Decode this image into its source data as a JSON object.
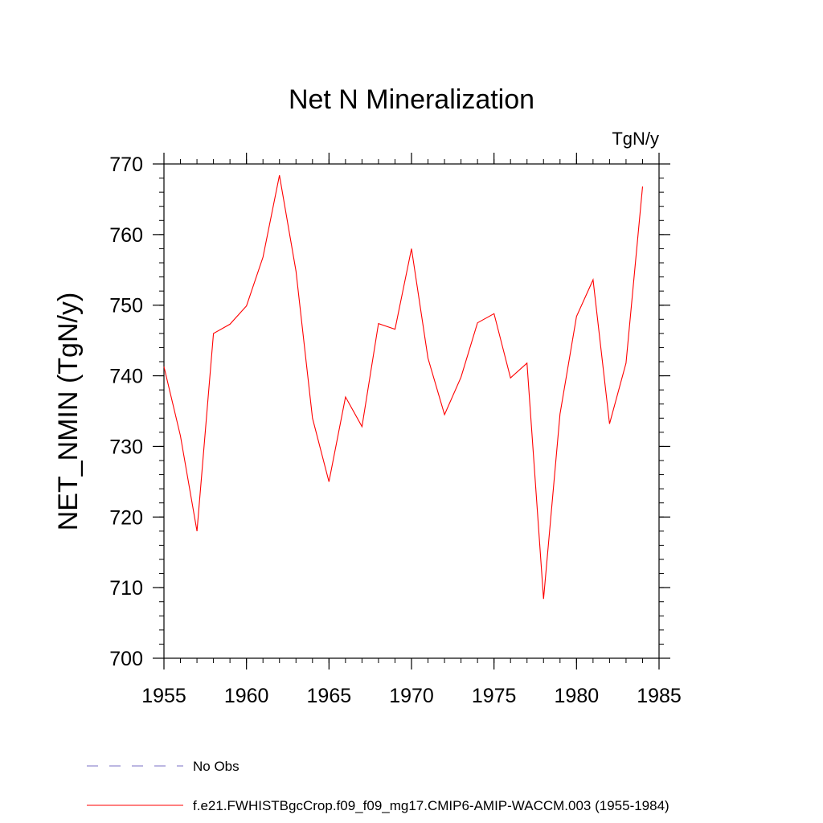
{
  "chart_data": {
    "type": "line",
    "title": "Net N Mineralization",
    "units_label": "TgN/y",
    "ylabel": "NET_NMIN  (TgN/y)",
    "xlabel": "",
    "xlim": [
      1955,
      1985
    ],
    "ylim": [
      700,
      770
    ],
    "x_major_ticks": [
      1955,
      1960,
      1965,
      1970,
      1975,
      1980,
      1985
    ],
    "x_tick_labels": [
      "1955",
      "1960",
      "1965",
      "1970",
      "1975",
      "1980",
      "1985"
    ],
    "x_minor_step": 1,
    "y_major_ticks": [
      700,
      710,
      720,
      730,
      740,
      750,
      760,
      770
    ],
    "y_tick_labels": [
      "700",
      "710",
      "720",
      "730",
      "740",
      "750",
      "760",
      "770"
    ],
    "y_minor_step": 2,
    "grid": false,
    "series": [
      {
        "name": "f.e21.FWHISTBgcCrop.f09_f09_mg17.CMIP6-AMIP-WACCM.003 (1955-1984)",
        "color": "#ff0000",
        "style": "solid",
        "x": [
          1955,
          1956,
          1957,
          1958,
          1959,
          1960,
          1961,
          1962,
          1963,
          1964,
          1965,
          1966,
          1967,
          1968,
          1969,
          1970,
          1971,
          1972,
          1973,
          1974,
          1975,
          1976,
          1977,
          1978,
          1979,
          1980,
          1981,
          1982,
          1983,
          1984
        ],
        "values": [
          741.3,
          731.5,
          718.0,
          746.0,
          747.3,
          749.9,
          756.8,
          768.4,
          754.8,
          734.0,
          725.0,
          737.0,
          732.8,
          747.4,
          746.6,
          758.0,
          742.5,
          734.5,
          739.8,
          747.5,
          748.8,
          739.7,
          741.8,
          708.4,
          734.6,
          748.4,
          753.6,
          733.2,
          741.8,
          766.8
        ]
      }
    ],
    "legend": {
      "placement": "bottom-left",
      "entries": [
        {
          "label": "No Obs",
          "color": "#7a6fc4",
          "style": "dashed"
        },
        {
          "label": "f.e21.FWHISTBgcCrop.f09_f09_mg17.CMIP6-AMIP-WACCM.003 (1955-1984)",
          "color": "#ff0000",
          "style": "solid"
        }
      ]
    }
  }
}
